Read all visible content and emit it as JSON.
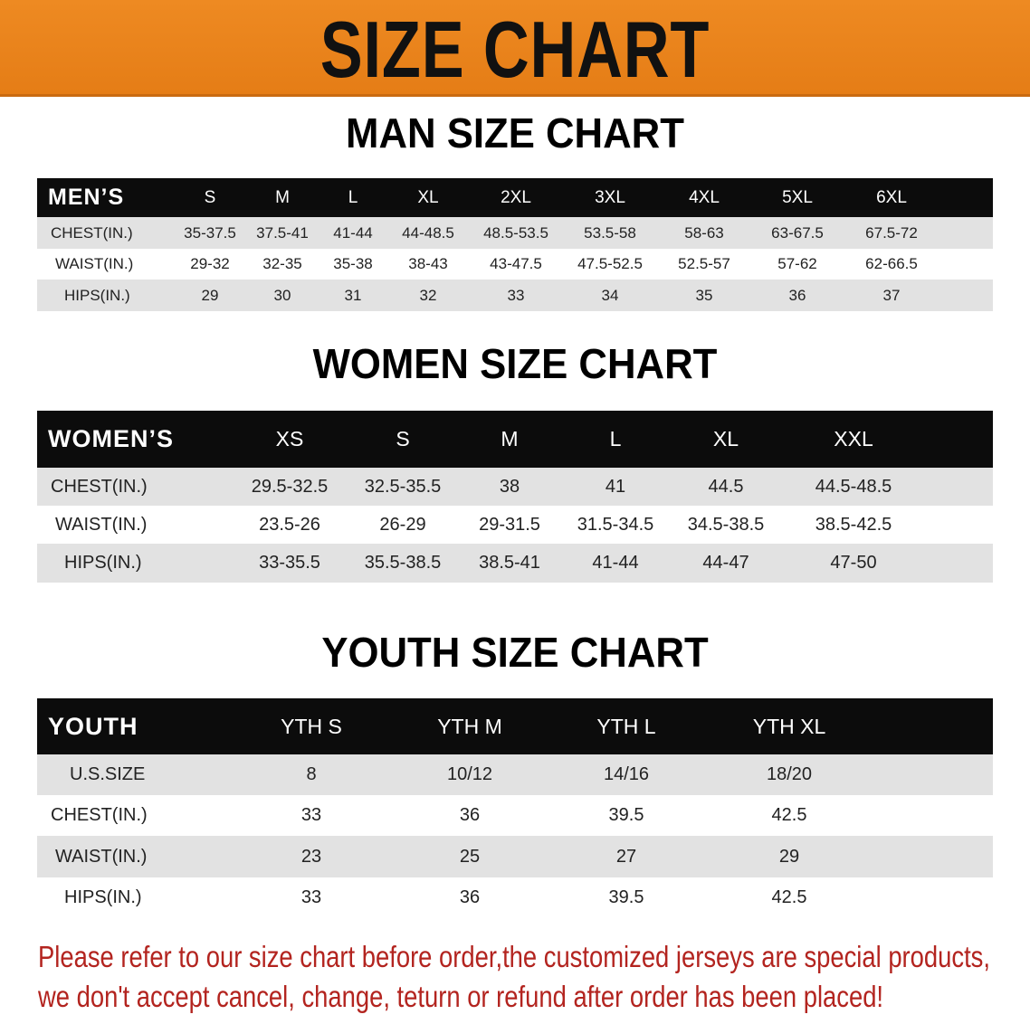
{
  "banner": {
    "title": "SIZE CHART",
    "color": "#ea8420"
  },
  "men": {
    "title": "MAN SIZE CHART",
    "header_label": "MEN’S",
    "columns": [
      "S",
      "M",
      "L",
      "XL",
      "2XL",
      "3XL",
      "4XL",
      "5XL",
      "6XL"
    ],
    "rows": [
      {
        "label": "CHEST(IN.)",
        "values": [
          "35-37.5",
          "37.5-41",
          "41-44",
          "44-48.5",
          "48.5-53.5",
          "53.5-58",
          "58-63",
          "63-67.5",
          "67.5-72"
        ]
      },
      {
        "label": "WAIST(IN.)",
        "values": [
          "29-32",
          "32-35",
          "35-38",
          "38-43",
          "43-47.5",
          "47.5-52.5",
          "52.5-57",
          "57-62",
          "62-66.5"
        ]
      },
      {
        "label": "HIPS(IN.)",
        "values": [
          "29",
          "30",
          "31",
          "32",
          "33",
          "34",
          "35",
          "36",
          "37"
        ]
      }
    ]
  },
  "women": {
    "title": "WOMEN SIZE CHART",
    "header_label": "WOMEN’S",
    "columns": [
      "XS",
      "S",
      "M",
      "L",
      "XL",
      "XXL"
    ],
    "rows": [
      {
        "label": "CHEST(IN.)",
        "values": [
          "29.5-32.5",
          "32.5-35.5",
          "38",
          "41",
          "44.5",
          "44.5-48.5"
        ]
      },
      {
        "label": "WAIST(IN.)",
        "values": [
          "23.5-26",
          "26-29",
          "29-31.5",
          "31.5-34.5",
          "34.5-38.5",
          "38.5-42.5"
        ]
      },
      {
        "label": "HIPS(IN.)",
        "values": [
          "33-35.5",
          "35.5-38.5",
          "38.5-41",
          "41-44",
          "44-47",
          "47-50"
        ]
      }
    ]
  },
  "youth": {
    "title": "YOUTH SIZE CHART",
    "header_label": "YOUTH",
    "columns": [
      "YTH S",
      "YTH M",
      "YTH L",
      "YTH XL"
    ],
    "rows": [
      {
        "label": "U.S.SIZE",
        "values": [
          "8",
          "10/12",
          "14/16",
          "18/20"
        ]
      },
      {
        "label": "CHEST(IN.)",
        "values": [
          "33",
          "36",
          "39.5",
          "42.5"
        ]
      },
      {
        "label": "WAIST(IN.)",
        "values": [
          "23",
          "25",
          "27",
          "29"
        ]
      },
      {
        "label": "HIPS(IN.)",
        "values": [
          "33",
          "36",
          "39.5",
          "42.5"
        ]
      }
    ]
  },
  "note": {
    "line1": "Please refer to our size chart before order,the customized jerseys are special products,",
    "line2": "we don't accept cancel, change, teturn or refund after order has been placed!",
    "color": "#b3241f"
  }
}
